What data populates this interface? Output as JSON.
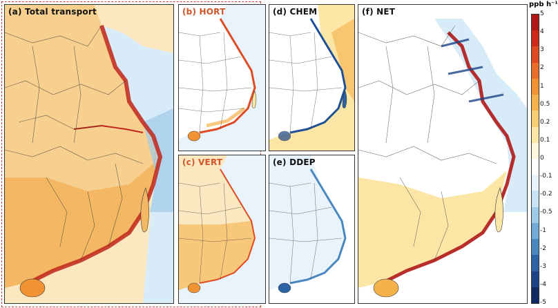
{
  "panels": {
    "a": {
      "label": "(a) Total transport",
      "label_color": "#111111"
    },
    "b": {
      "label": "(b) HORT",
      "label_color": "#d0552a"
    },
    "c": {
      "label": "(c) VERT",
      "label_color": "#d0552a"
    },
    "d": {
      "label": "(d) CHEM",
      "label_color": "#111111"
    },
    "e": {
      "label": "(e) DDEP",
      "label_color": "#111111"
    },
    "f": {
      "label": "(f) NET",
      "label_color": "#111111"
    }
  },
  "colorbar": {
    "unit": "ppb h⁻¹",
    "ticks": [
      "5",
      "4",
      "3",
      "2",
      "1",
      "0.5",
      "0.2",
      "0.1",
      "0",
      "-0.1",
      "-0.2",
      "-0.5",
      "-1",
      "-2",
      "-3",
      "-4",
      "-5"
    ],
    "colors": [
      "#b01818",
      "#cd2a1c",
      "#e04a22",
      "#ea6d2a",
      "#f19233",
      "#f5b14a",
      "#f8cd73",
      "#fbe6a6",
      "#fff7de",
      "#ffffff",
      "#e8f3fb",
      "#c8e3f4",
      "#9fcbe9",
      "#73abd8",
      "#4a87c1",
      "#2c63a5",
      "#1b4386",
      "#112a64"
    ],
    "panel_colors": {
      "land_warm": "#f6c77c",
      "land_light": "#fbe4b0",
      "coast_red": "#c0261a",
      "ocean_blue": "#8ec2e6",
      "ocean_light": "#d7ebf8",
      "deep_blue": "#1e4f96",
      "border_line": "#333333"
    }
  }
}
